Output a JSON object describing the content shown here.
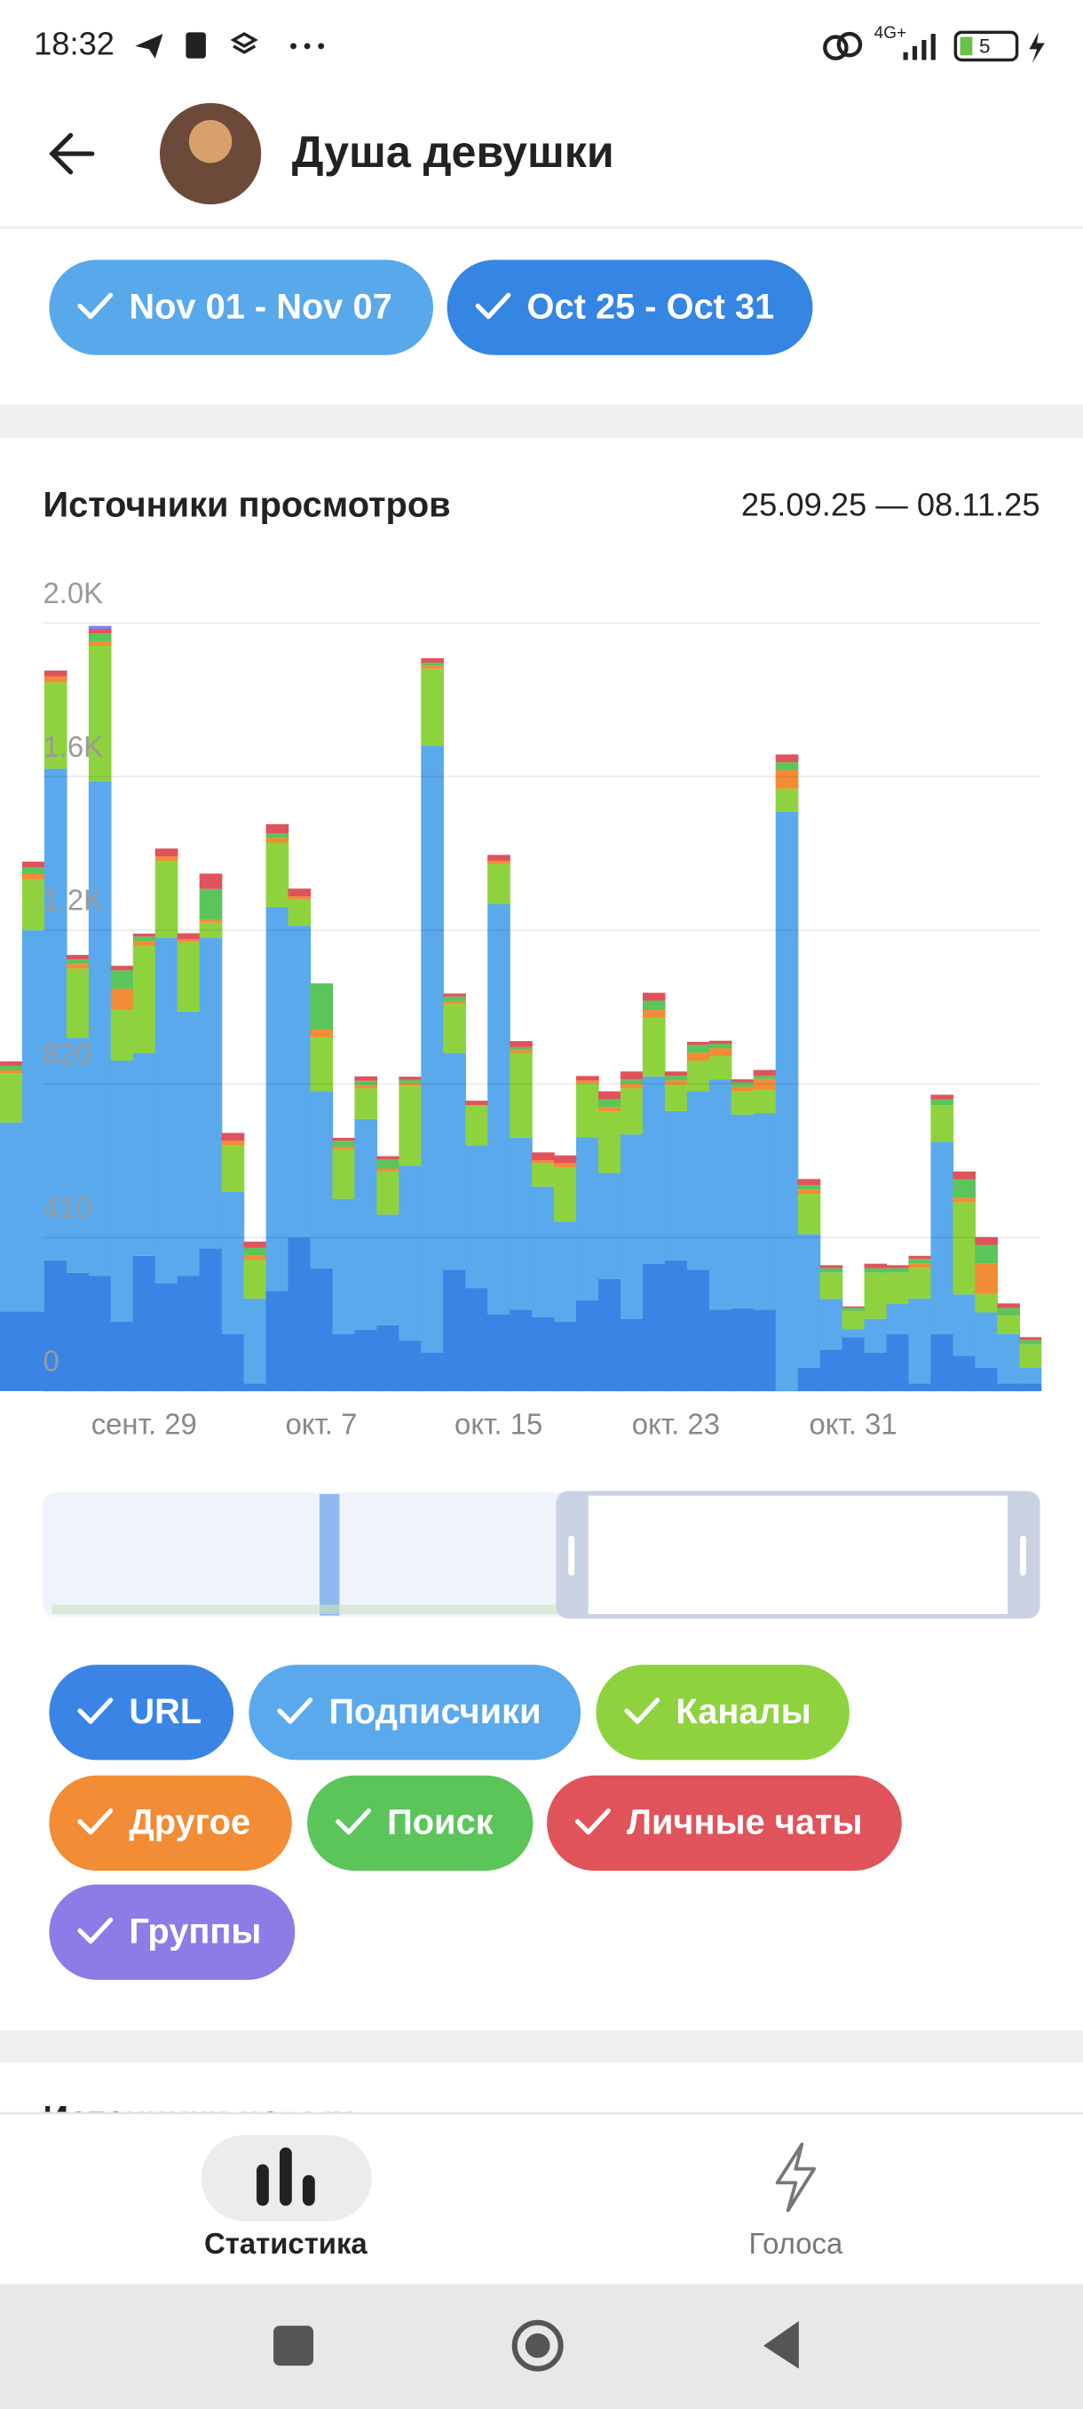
{
  "status_bar": {
    "time": "18:32",
    "network": "4G+",
    "battery": "5"
  },
  "header": {
    "title": "Душа девушки"
  },
  "period_chips": [
    "Nov 01 - Nov 07",
    "Oct 25 - Oct 31"
  ],
  "chart_data": {
    "type": "bar",
    "stacked": true,
    "title": "Источники просмотров",
    "subtitle": "25.09.25 — 08.11.25",
    "categories": [
      null,
      null,
      null,
      null,
      null,
      null,
      "сент. 29",
      null,
      null,
      null,
      null,
      null,
      null,
      null,
      "окт. 7",
      null,
      null,
      null,
      null,
      null,
      null,
      null,
      "окт. 15",
      null,
      null,
      null,
      null,
      null,
      null,
      null,
      "окт. 23",
      null,
      null,
      null,
      null,
      null,
      null,
      null,
      "окт. 31",
      null,
      null,
      null,
      null,
      null,
      null,
      null,
      null
    ],
    "ylim": [
      0,
      2170
    ],
    "yticks": [
      0,
      410,
      820,
      {
        "value": 1230,
        "label": "1.2K"
      },
      {
        "value": 1640,
        "label": "1.6K"
      },
      {
        "value": 2050,
        "label": "2.0K"
      }
    ],
    "grid": true,
    "series": [
      {
        "name": "URL",
        "color": "#3a84e5",
        "values": [
          213,
          213,
          349,
          316,
          308,
          185,
          361,
          287,
          308,
          381,
          152,
          21,
          267,
          410,
          328,
          152,
          164,
          176,
          135,
          103,
          324,
          275,
          205,
          217,
          197,
          185,
          242,
          299,
          193,
          340,
          349,
          324,
          217,
          221,
          217,
          0,
          62,
          111,
          144,
          103,
          152,
          21,
          152,
          94,
          62,
          21,
          21
        ]
      },
      {
        "name": "Подписчики",
        "color": "#5aa9ec",
        "values": [
          504,
          1017,
          1312,
          627,
          1320,
          697,
          541,
          923,
          705,
          828,
          381,
          226,
          1025,
          832,
          472,
          361,
          562,
          295,
          467,
          1620,
          578,
          381,
          1095,
          459,
          349,
          267,
          435,
          283,
          492,
          500,
          398,
          476,
          615,
          517,
          525,
          1546,
          357,
          135,
          21,
          90,
          82,
          226,
          513,
          164,
          148,
          131,
          41
        ]
      },
      {
        "name": "Каналы",
        "color": "#8ed33d",
        "values": [
          131,
          135,
          230,
          185,
          361,
          135,
          287,
          205,
          185,
          41,
          123,
          103,
          172,
          70,
          144,
          131,
          82,
          115,
          213,
          205,
          131,
          107,
          107,
          226,
          62,
          144,
          144,
          164,
          123,
          156,
          70,
          82,
          62,
          62,
          62,
          62,
          107,
          70,
          49,
          123,
          82,
          82,
          98,
          246,
          49,
          49,
          62
        ]
      },
      {
        "name": "Другое",
        "color": "#f28c35",
        "values": [
          8,
          16,
          16,
          12,
          12,
          57,
          12,
          12,
          8,
          8,
          12,
          12,
          12,
          8,
          21,
          8,
          8,
          8,
          8,
          8,
          8,
          0,
          8,
          8,
          8,
          12,
          8,
          12,
          12,
          21,
          12,
          21,
          21,
          12,
          29,
          49,
          12,
          0,
          0,
          0,
          0,
          12,
          0,
          12,
          82,
          0,
          0
        ]
      },
      {
        "name": "Поиск",
        "color": "#5bc55a",
        "values": [
          12,
          16,
          0,
          12,
          21,
          49,
          12,
          0,
          0,
          82,
          0,
          21,
          12,
          0,
          123,
          16,
          12,
          25,
          8,
          8,
          12,
          0,
          0,
          8,
          0,
          0,
          0,
          21,
          12,
          25,
          12,
          21,
          12,
          12,
          8,
          21,
          12,
          12,
          8,
          12,
          12,
          12,
          16,
          49,
          49,
          21,
          12
        ]
      },
      {
        "name": "Личные чаты",
        "color": "#e0535b",
        "values": [
          12,
          16,
          16,
          12,
          12,
          12,
          8,
          21,
          16,
          41,
          21,
          16,
          25,
          21,
          0,
          8,
          12,
          8,
          8,
          12,
          8,
          12,
          16,
          16,
          21,
          21,
          12,
          21,
          21,
          21,
          12,
          8,
          8,
          8,
          16,
          21,
          16,
          8,
          4,
          12,
          8,
          8,
          12,
          21,
          21,
          12,
          8
        ]
      },
      {
        "name": "Группы",
        "color": "#8c7ce8",
        "values": [
          0,
          0,
          0,
          0,
          8,
          0,
          0,
          0,
          0,
          0,
          0,
          0,
          0,
          0,
          0,
          0,
          0,
          0,
          0,
          0,
          0,
          0,
          0,
          0,
          0,
          0,
          0,
          0,
          0,
          0,
          0,
          0,
          0,
          0,
          0,
          0,
          0,
          0,
          0,
          0,
          0,
          0,
          0,
          0,
          0,
          0,
          0
        ]
      }
    ]
  },
  "next_section_title": "Источники новых",
  "bottom_nav": [
    "Статистика",
    "Голоса"
  ]
}
